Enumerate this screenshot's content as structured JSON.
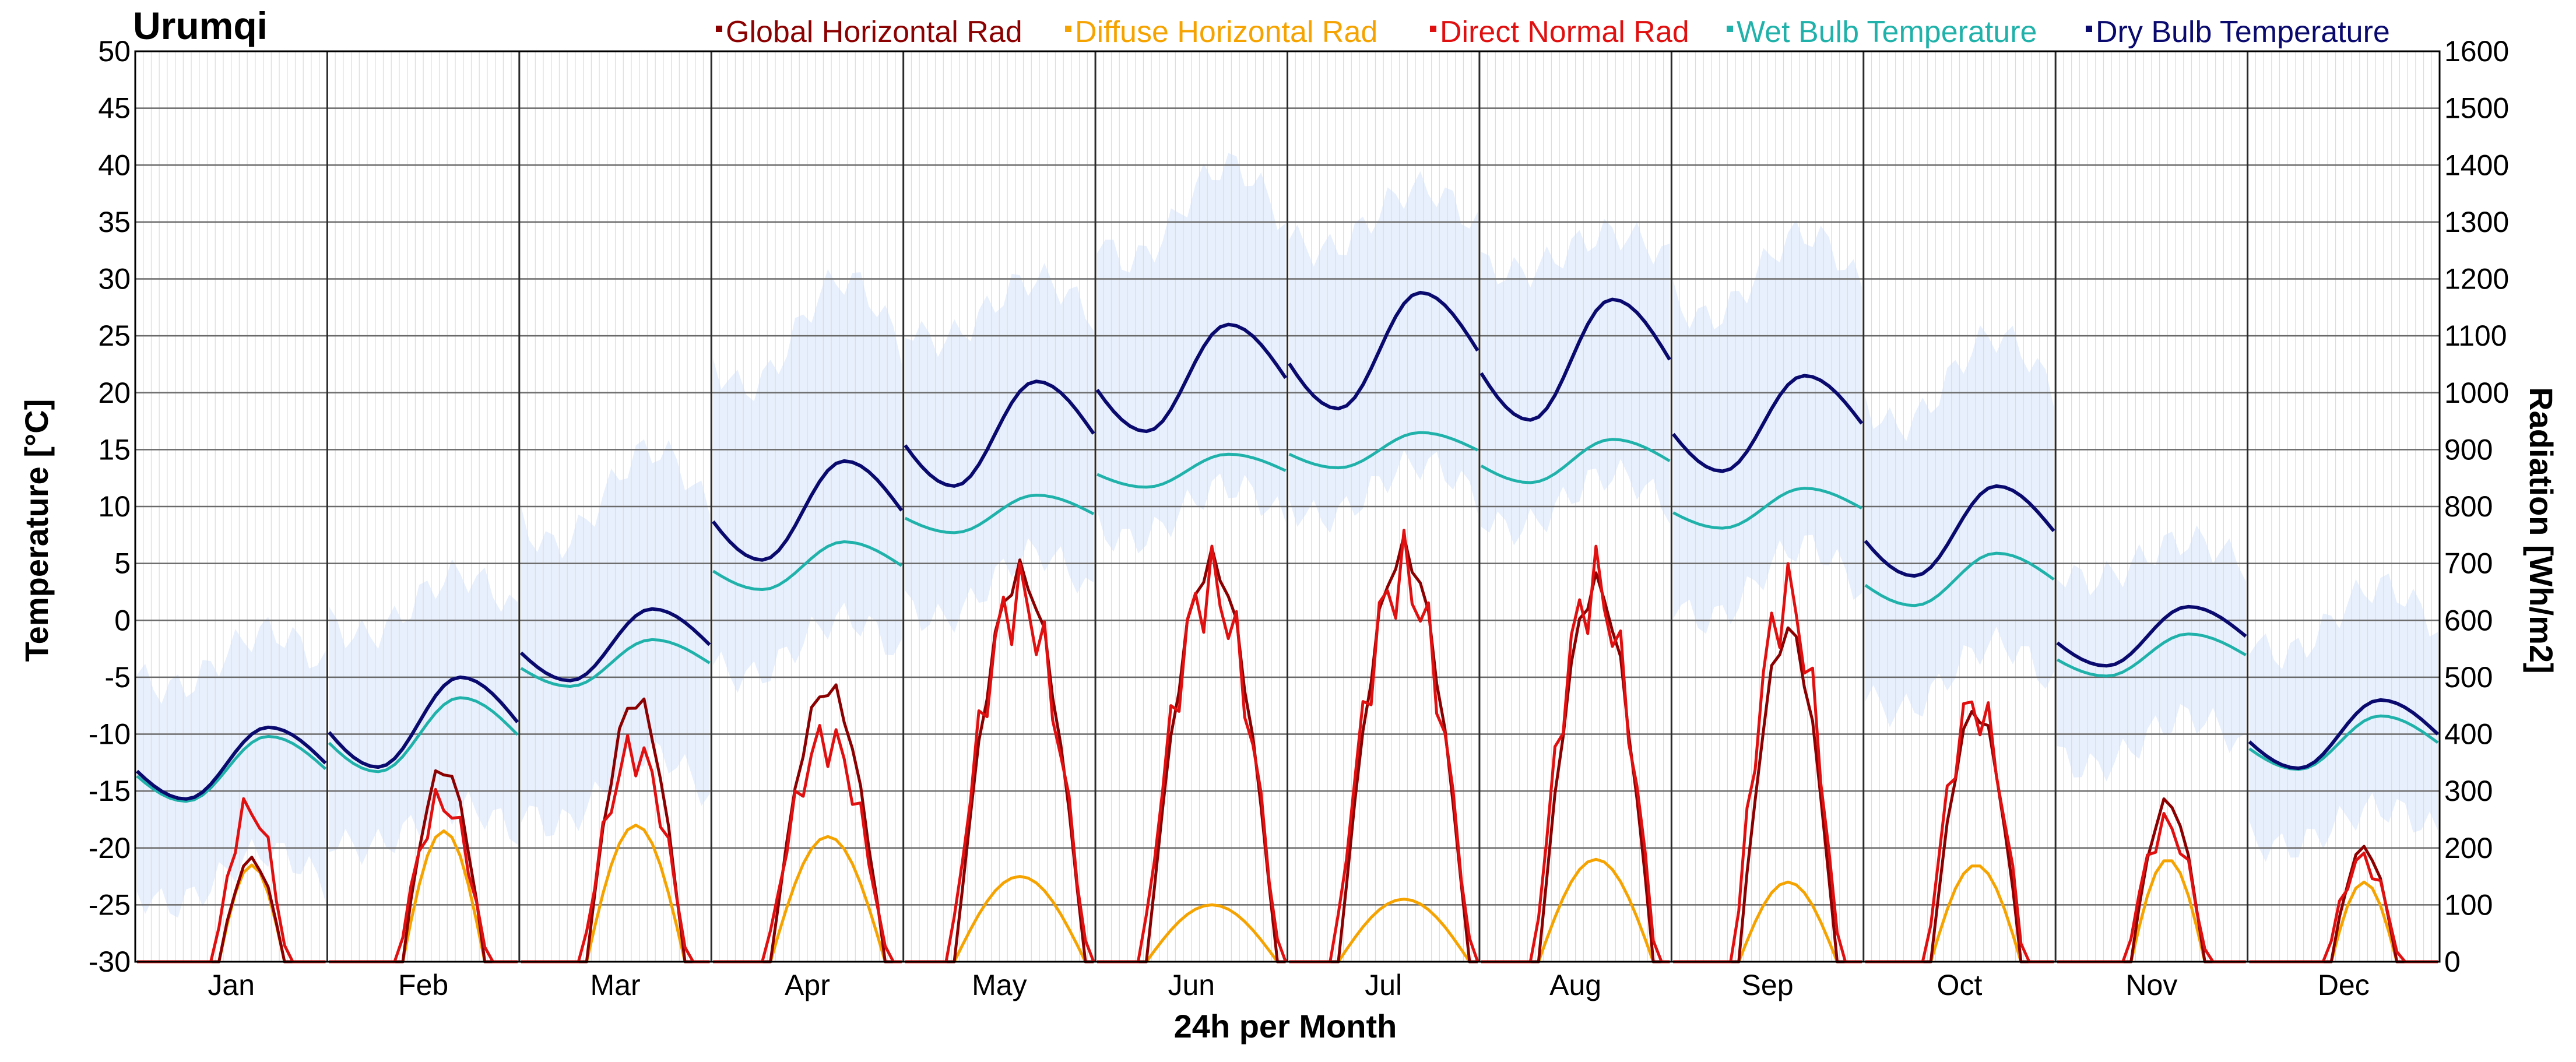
{
  "chart_data": {
    "type": "line",
    "title": "Urumqi",
    "xlabel": "24h per Month",
    "ylabel_left": "Temperature [°C]",
    "ylabel_right": "Radiation [Wh/m2]",
    "ylim_left": [
      -30,
      50
    ],
    "ylim_right": [
      0,
      1600
    ],
    "yticks_left": [
      50,
      45,
      40,
      35,
      30,
      25,
      20,
      15,
      10,
      5,
      0,
      -5,
      -10,
      -15,
      -20,
      -25,
      -30
    ],
    "yticks_right": [
      1600,
      1500,
      1400,
      1300,
      1200,
      1100,
      1000,
      900,
      800,
      700,
      600,
      500,
      400,
      300,
      200,
      100,
      0
    ],
    "months": [
      "Jan",
      "Feb",
      "Mar",
      "Apr",
      "May",
      "Jun",
      "Jul",
      "Aug",
      "Sep",
      "Oct",
      "Nov",
      "Dec"
    ],
    "hours_per_month": 24,
    "grid": true,
    "legend_position": "top-right",
    "legend": [
      {
        "name": "Global Horizontal Rad",
        "color": "#8b0000"
      },
      {
        "name": "Diffuse Horizontal Rad",
        "color": "#f5a300"
      },
      {
        "name": "Direct Normal Rad",
        "color": "#e01010"
      },
      {
        "name": "Wet Bulb Temperature",
        "color": "#20b2aa"
      },
      {
        "name": "Dry Bulb Temperature",
        "color": "#0a0a6e"
      }
    ],
    "band_color": "#e8f0fd",
    "dry_bulb": {
      "min": [
        -15.7,
        -12.9,
        -5.3,
        5.3,
        11.8,
        16.6,
        18.6,
        17.6,
        13.1,
        3.9,
        -4.0,
        -13.0
      ],
      "max": [
        -9.4,
        -5.0,
        1.0,
        14.0,
        21.0,
        26.0,
        28.8,
        28.2,
        21.5,
        11.8,
        1.2,
        -7.0
      ],
      "min_hour": [
        6,
        6,
        6,
        6,
        6,
        6,
        6,
        6,
        6,
        6,
        6,
        6
      ],
      "max_hour": [
        16,
        16,
        16,
        16,
        16,
        16,
        16,
        16,
        16,
        16,
        16,
        16
      ]
    },
    "wet_bulb": {
      "min": [
        -15.9,
        -13.3,
        -5.8,
        2.7,
        7.7,
        11.7,
        13.4,
        12.1,
        8.1,
        1.3,
        -4.9,
        -13.1
      ],
      "max": [
        -10.2,
        -6.8,
        -1.7,
        6.9,
        11.0,
        14.6,
        16.5,
        15.9,
        11.6,
        5.9,
        -1.2,
        -8.4
      ],
      "min_hour": [
        6,
        6,
        6,
        6,
        6,
        6,
        6,
        6,
        6,
        6,
        6,
        6
      ],
      "max_hour": [
        16,
        16,
        16,
        16,
        16,
        16,
        16,
        16,
        16,
        16,
        16,
        16
      ]
    },
    "dry_bulb_range_band": {
      "lower": [
        -25,
        -20,
        -18,
        -5,
        0,
        7,
        9,
        8,
        0,
        -8,
        -13,
        -20
      ],
      "upper": [
        -1,
        4,
        15,
        30,
        30,
        40,
        38,
        34,
        34,
        25,
        7,
        3
      ]
    },
    "global_horizontal_rad": {
      "peak": [
        180,
        340,
        460,
        480,
        680,
        700,
        720,
        660,
        580,
        440,
        280,
        200
      ],
      "sunrise": [
        10,
        9,
        8,
        7,
        6,
        6,
        6,
        7,
        8,
        8,
        9,
        10
      ],
      "sunset": [
        18,
        19,
        20,
        21,
        22,
        22,
        22,
        21,
        20,
        19,
        18,
        18
      ]
    },
    "diffuse_horizontal_rad": {
      "peak": [
        170,
        230,
        240,
        220,
        150,
        100,
        110,
        180,
        140,
        170,
        180,
        140
      ],
      "sunrise": [
        10,
        9,
        8,
        7,
        6,
        6,
        6,
        7,
        8,
        8,
        9,
        10
      ],
      "sunset": [
        18,
        19,
        20,
        21,
        22,
        22,
        22,
        21,
        20,
        19,
        18,
        18
      ]
    },
    "direct_normal_rad": {
      "peak": [
        270,
        280,
        370,
        390,
        640,
        660,
        680,
        660,
        640,
        450,
        240,
        180
      ],
      "sunrise": [
        10,
        9,
        8,
        7,
        6,
        6,
        6,
        7,
        8,
        8,
        9,
        10
      ],
      "sunset": [
        18,
        19,
        20,
        21,
        22,
        22,
        22,
        21,
        20,
        19,
        18,
        18
      ]
    }
  }
}
